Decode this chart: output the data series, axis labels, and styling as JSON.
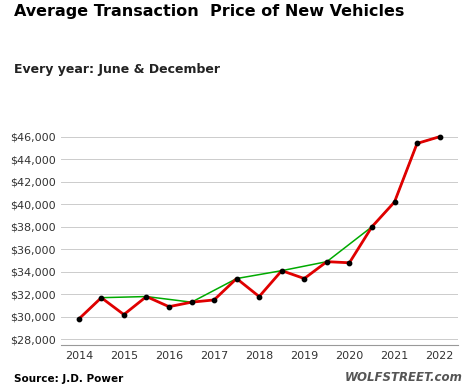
{
  "title": "Average Transaction  Price of New Vehicles",
  "subtitle": "Every year: June & December",
  "source": "Source: J.D. Power",
  "watermark": "WOLFSTREET.com",
  "x_all": [
    2014.0,
    2014.5,
    2015.0,
    2015.5,
    2016.0,
    2016.5,
    2017.0,
    2017.5,
    2018.0,
    2018.5,
    2019.0,
    2019.5,
    2020.0,
    2020.5,
    2021.0,
    2021.5,
    2022.0
  ],
  "y_all": [
    29800,
    31700,
    30200,
    31800,
    30900,
    31300,
    31500,
    33400,
    31800,
    34100,
    33400,
    34900,
    34800,
    38000,
    40200,
    45400,
    46000
  ],
  "green_x": [
    2014.0,
    2014.5,
    2015.5,
    2016.5,
    2017.5,
    2018.5,
    2019.5,
    2020.5,
    2021.0,
    2021.5,
    2022.0
  ],
  "green_y": [
    29800,
    31700,
    31800,
    31300,
    33400,
    34100,
    34900,
    38000,
    40200,
    45400,
    46000
  ],
  "ylim": [
    27500,
    47000
  ],
  "yticks": [
    28000,
    30000,
    32000,
    34000,
    36000,
    38000,
    40000,
    42000,
    44000,
    46000
  ],
  "xticks": [
    2014,
    2015,
    2016,
    2017,
    2018,
    2019,
    2020,
    2021,
    2022
  ],
  "red_color": "#e00000",
  "green_color": "#00aa00",
  "bg_color": "#ffffff",
  "grid_color": "#cccccc",
  "title_fontsize": 11.5,
  "subtitle_fontsize": 9
}
